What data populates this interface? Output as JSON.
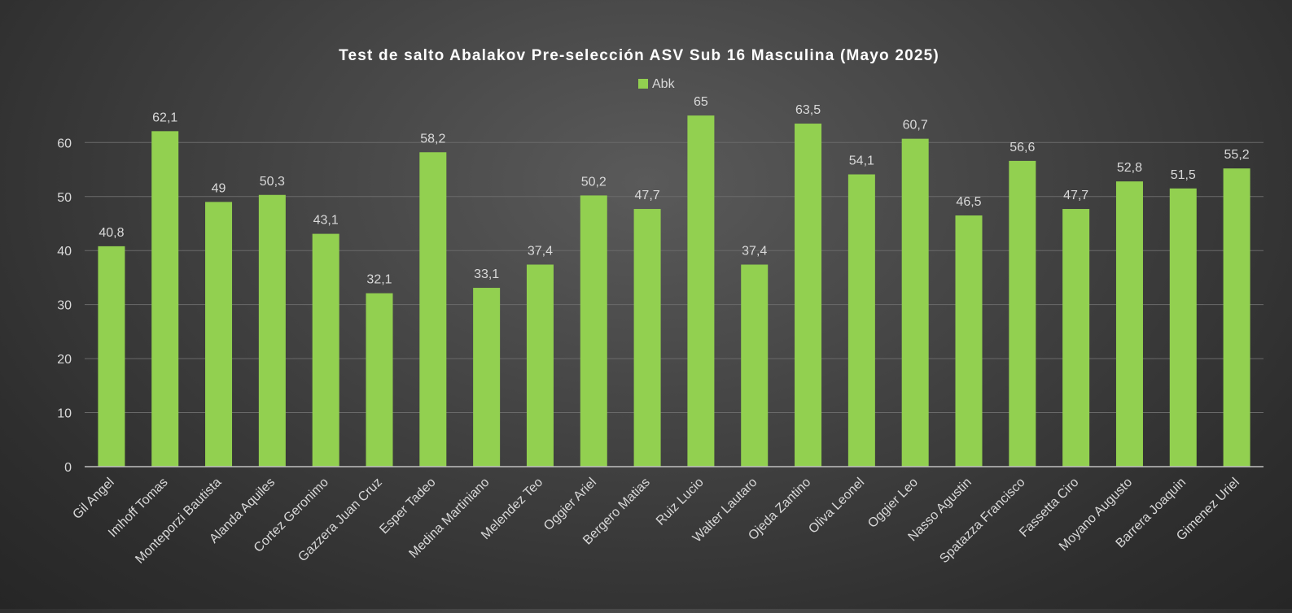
{
  "chart_data": {
    "type": "bar",
    "title": "Test de salto Abalakov Pre-selección ASV Sub 16 Masculina (Mayo 2025)",
    "xlabel": "",
    "ylabel": "",
    "legend_position": "top-center",
    "grid": true,
    "ylim": [
      0,
      65
    ],
    "yticks": [
      0,
      10,
      20,
      30,
      40,
      50,
      60
    ],
    "bar_color": "#92d050",
    "series": [
      {
        "name": "Abk",
        "values": [
          40.8,
          62.1,
          49,
          50.3,
          43.1,
          32.1,
          58.2,
          33.1,
          37.4,
          50.2,
          47.7,
          65,
          37.4,
          63.5,
          54.1,
          60.7,
          46.5,
          56.6,
          47.7,
          52.8,
          51.5,
          55.2
        ],
        "labels": [
          "40,8",
          "62,1",
          "49",
          "50,3",
          "43,1",
          "32,1",
          "58,2",
          "33,1",
          "37,4",
          "50,2",
          "47,7",
          "65",
          "37,4",
          "63,5",
          "54,1",
          "60,7",
          "46,5",
          "56,6",
          "47,7",
          "52,8",
          "51,5",
          "55,2"
        ]
      }
    ],
    "categories": [
      "Gil Angel",
      "Imhoff Tomas",
      "Monteporzi Bautista",
      "Alanda Aquiles",
      "Cortez Geronimo",
      "Gazzera Juan Cruz",
      "Esper Tadeo",
      "Medina Martiniano",
      "Melendez Teo",
      "Oggier Ariel",
      "Bergero Matias",
      "Ruiz Lucio",
      "Walter Lautaro",
      "Ojeda Zantino",
      "Oliva Leonel",
      "Oggier Leo",
      "Nasso Agustin",
      "Spatazza Francisco",
      "Fassetta Ciro",
      "Moyano Augusto",
      "Barrera Joaquin",
      "Gimenez Uriel"
    ]
  }
}
